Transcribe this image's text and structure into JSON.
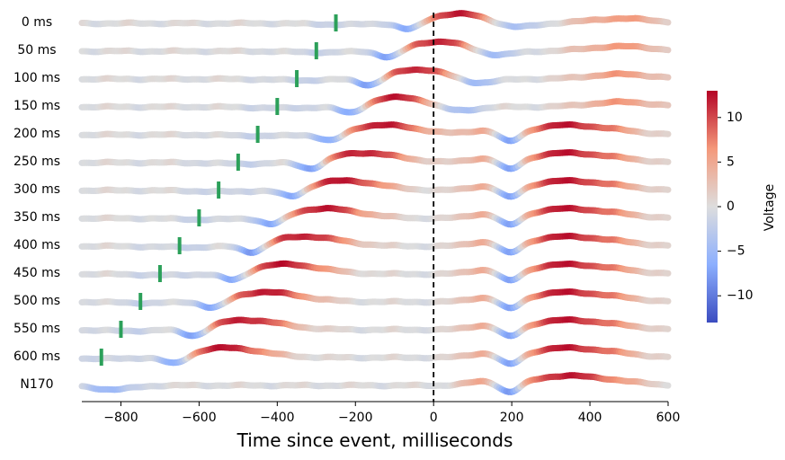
{
  "chart_data": {
    "type": "line",
    "xlabel": "Time since event, milliseconds",
    "xlim": [
      -900,
      600
    ],
    "xticks": [
      -800,
      -600,
      -400,
      -200,
      0,
      200,
      400,
      600
    ],
    "xtick_labels": [
      "−800",
      "−600",
      "−400",
      "−200",
      "0",
      "200",
      "400",
      "600"
    ],
    "event_line_x": 0,
    "trial_window_ms": [
      -900,
      600
    ],
    "colorbar": {
      "label": "Voltage",
      "range": [
        -13,
        13
      ],
      "ticks": [
        10,
        5,
        0,
        -5,
        -10
      ],
      "colormap": "coolwarm"
    },
    "colors": {
      "low": "#3b4cc0",
      "mid": "#dddddd",
      "high": "#b40426",
      "marker": "#2ca05a",
      "event_line": "#000000"
    },
    "series": [
      {
        "name": "0 ms",
        "marker_x": -250,
        "wave_shift": 0,
        "tail": "none"
      },
      {
        "name": "50 ms",
        "marker_x": -300,
        "wave_shift": -50,
        "tail": "none"
      },
      {
        "name": "100 ms",
        "marker_x": -350,
        "wave_shift": -100,
        "tail": "none"
      },
      {
        "name": "150 ms",
        "marker_x": -400,
        "wave_shift": -150,
        "tail": "none"
      },
      {
        "name": "200 ms",
        "marker_x": -450,
        "wave_shift": -200,
        "tail": "n170"
      },
      {
        "name": "250 ms",
        "marker_x": -500,
        "wave_shift": -250,
        "tail": "n170"
      },
      {
        "name": "300 ms",
        "marker_x": -550,
        "wave_shift": -300,
        "tail": "n170"
      },
      {
        "name": "350 ms",
        "marker_x": -600,
        "wave_shift": -350,
        "tail": "n170"
      },
      {
        "name": "400 ms",
        "marker_x": -650,
        "wave_shift": -400,
        "tail": "n170"
      },
      {
        "name": "450 ms",
        "marker_x": -700,
        "wave_shift": -450,
        "tail": "n170"
      },
      {
        "name": "500 ms",
        "marker_x": -750,
        "wave_shift": -500,
        "tail": "n170"
      },
      {
        "name": "550 ms",
        "marker_x": -800,
        "wave_shift": -550,
        "tail": "n170"
      },
      {
        "name": "600 ms",
        "marker_x": -850,
        "wave_shift": -600,
        "tail": "n170"
      },
      {
        "name": "N170",
        "marker_x": null,
        "wave_shift": null,
        "tail": "n170"
      }
    ]
  }
}
